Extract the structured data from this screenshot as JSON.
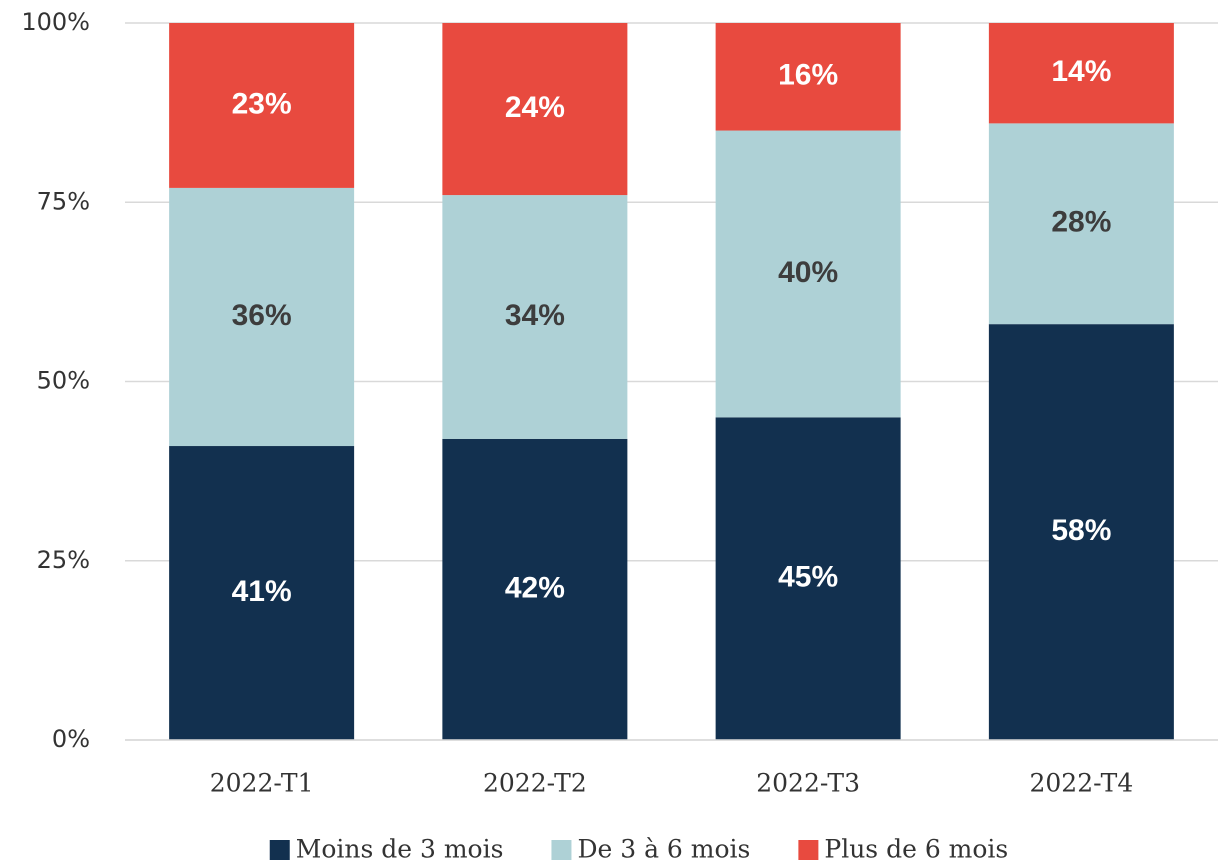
{
  "chart_data": {
    "type": "stacked_bar",
    "categories": [
      "2022-T1",
      "2022-T2",
      "2022-T3",
      "2022-T4"
    ],
    "series": [
      {
        "name": "Moins de 3 mois",
        "color": "#12304f",
        "values": [
          41,
          42,
          45,
          58
        ],
        "value_labels": [
          "41%",
          "42%",
          "45%",
          "58%"
        ]
      },
      {
        "name": "De 3 à 6 mois",
        "color": "#aed1d6",
        "values": [
          36,
          34,
          40,
          28
        ],
        "value_labels": [
          "36%",
          "34%",
          "40%",
          "28%"
        ]
      },
      {
        "name": "Plus de 6 mois",
        "color": "#e84a3f",
        "values": [
          23,
          24,
          16,
          14
        ],
        "value_labels": [
          "23%",
          "24%",
          "16%",
          "14%"
        ]
      }
    ],
    "ylim": [
      0,
      100
    ],
    "yticks": [
      {
        "value": 0,
        "label": "0%"
      },
      {
        "value": 25,
        "label": "25%"
      },
      {
        "value": 50,
        "label": "50%"
      },
      {
        "value": 75,
        "label": "75%"
      },
      {
        "value": 100,
        "label": "100%"
      }
    ],
    "grid": true,
    "legend": "bottom"
  }
}
